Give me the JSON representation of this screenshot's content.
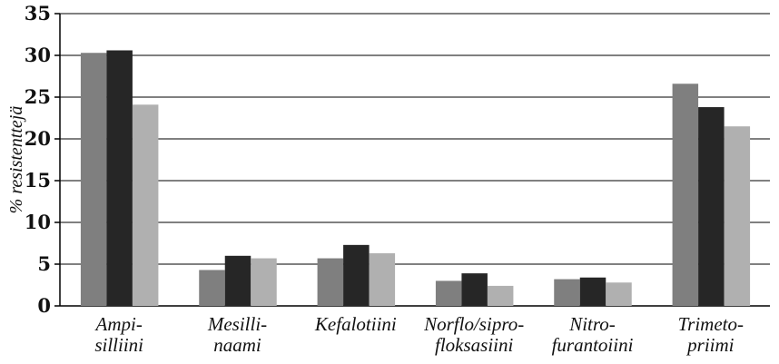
{
  "chart_data": {
    "type": "bar",
    "categories": [
      [
        "Ampi-",
        "silliini"
      ],
      [
        "Mesilli-",
        "naami"
      ],
      [
        "Kefalotiini"
      ],
      [
        "Norflo/sipro-",
        "floksasiini"
      ],
      [
        "Nitro-",
        "furantoiini"
      ],
      [
        "Trimeto-",
        "priimi"
      ]
    ],
    "series": [
      {
        "values": [
          30.3,
          4.3,
          5.7,
          3.0,
          3.2,
          26.6
        ],
        "color": "#7f7f7f"
      },
      {
        "values": [
          30.6,
          6.0,
          7.3,
          3.9,
          3.4,
          23.8
        ],
        "color": "#262626"
      },
      {
        "values": [
          24.1,
          5.7,
          6.3,
          2.4,
          2.8,
          21.5
        ],
        "color": "#b0b0b0"
      }
    ],
    "ylabel": "% resistenttejä",
    "yticks": [
      0,
      5,
      10,
      15,
      20,
      25,
      30,
      35
    ],
    "ylim": [
      0,
      35
    ],
    "grid": true
  }
}
